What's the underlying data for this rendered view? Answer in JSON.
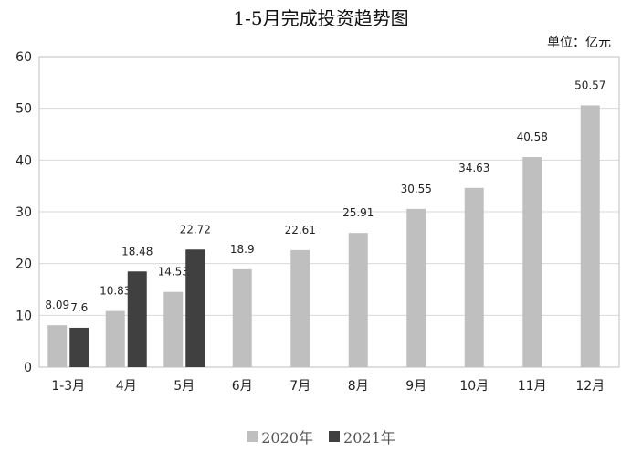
{
  "chart_data": {
    "type": "bar",
    "title": "1-5月完成投资趋势图",
    "unit_label": "单位：亿元",
    "categories": [
      "1-3月",
      "4月",
      "5月",
      "6月",
      "7月",
      "8月",
      "9月",
      "10月",
      "11月",
      "12月"
    ],
    "series": [
      {
        "name": "2020年",
        "color": "#bfbfbf",
        "values": [
          8.09,
          10.83,
          14.53,
          18.9,
          22.61,
          25.91,
          30.55,
          34.63,
          40.58,
          50.57
        ],
        "labels": [
          "8.09",
          "10.83",
          "14.53",
          "18.9",
          "22.61",
          "25.91",
          "30.55",
          "34.63",
          "40.58",
          "50.57"
        ]
      },
      {
        "name": "2021年",
        "color": "#404040",
        "values": [
          7.6,
          18.48,
          22.72,
          null,
          null,
          null,
          null,
          null,
          null,
          null
        ],
        "labels": [
          "7.6",
          "18.48",
          "22.72",
          null,
          null,
          null,
          null,
          null,
          null,
          null
        ]
      }
    ],
    "ylim": [
      0,
      60
    ],
    "yticks": [
      "0",
      "10",
      "20",
      "30",
      "40",
      "50",
      "60"
    ],
    "grid": true,
    "legend": "bottom"
  }
}
